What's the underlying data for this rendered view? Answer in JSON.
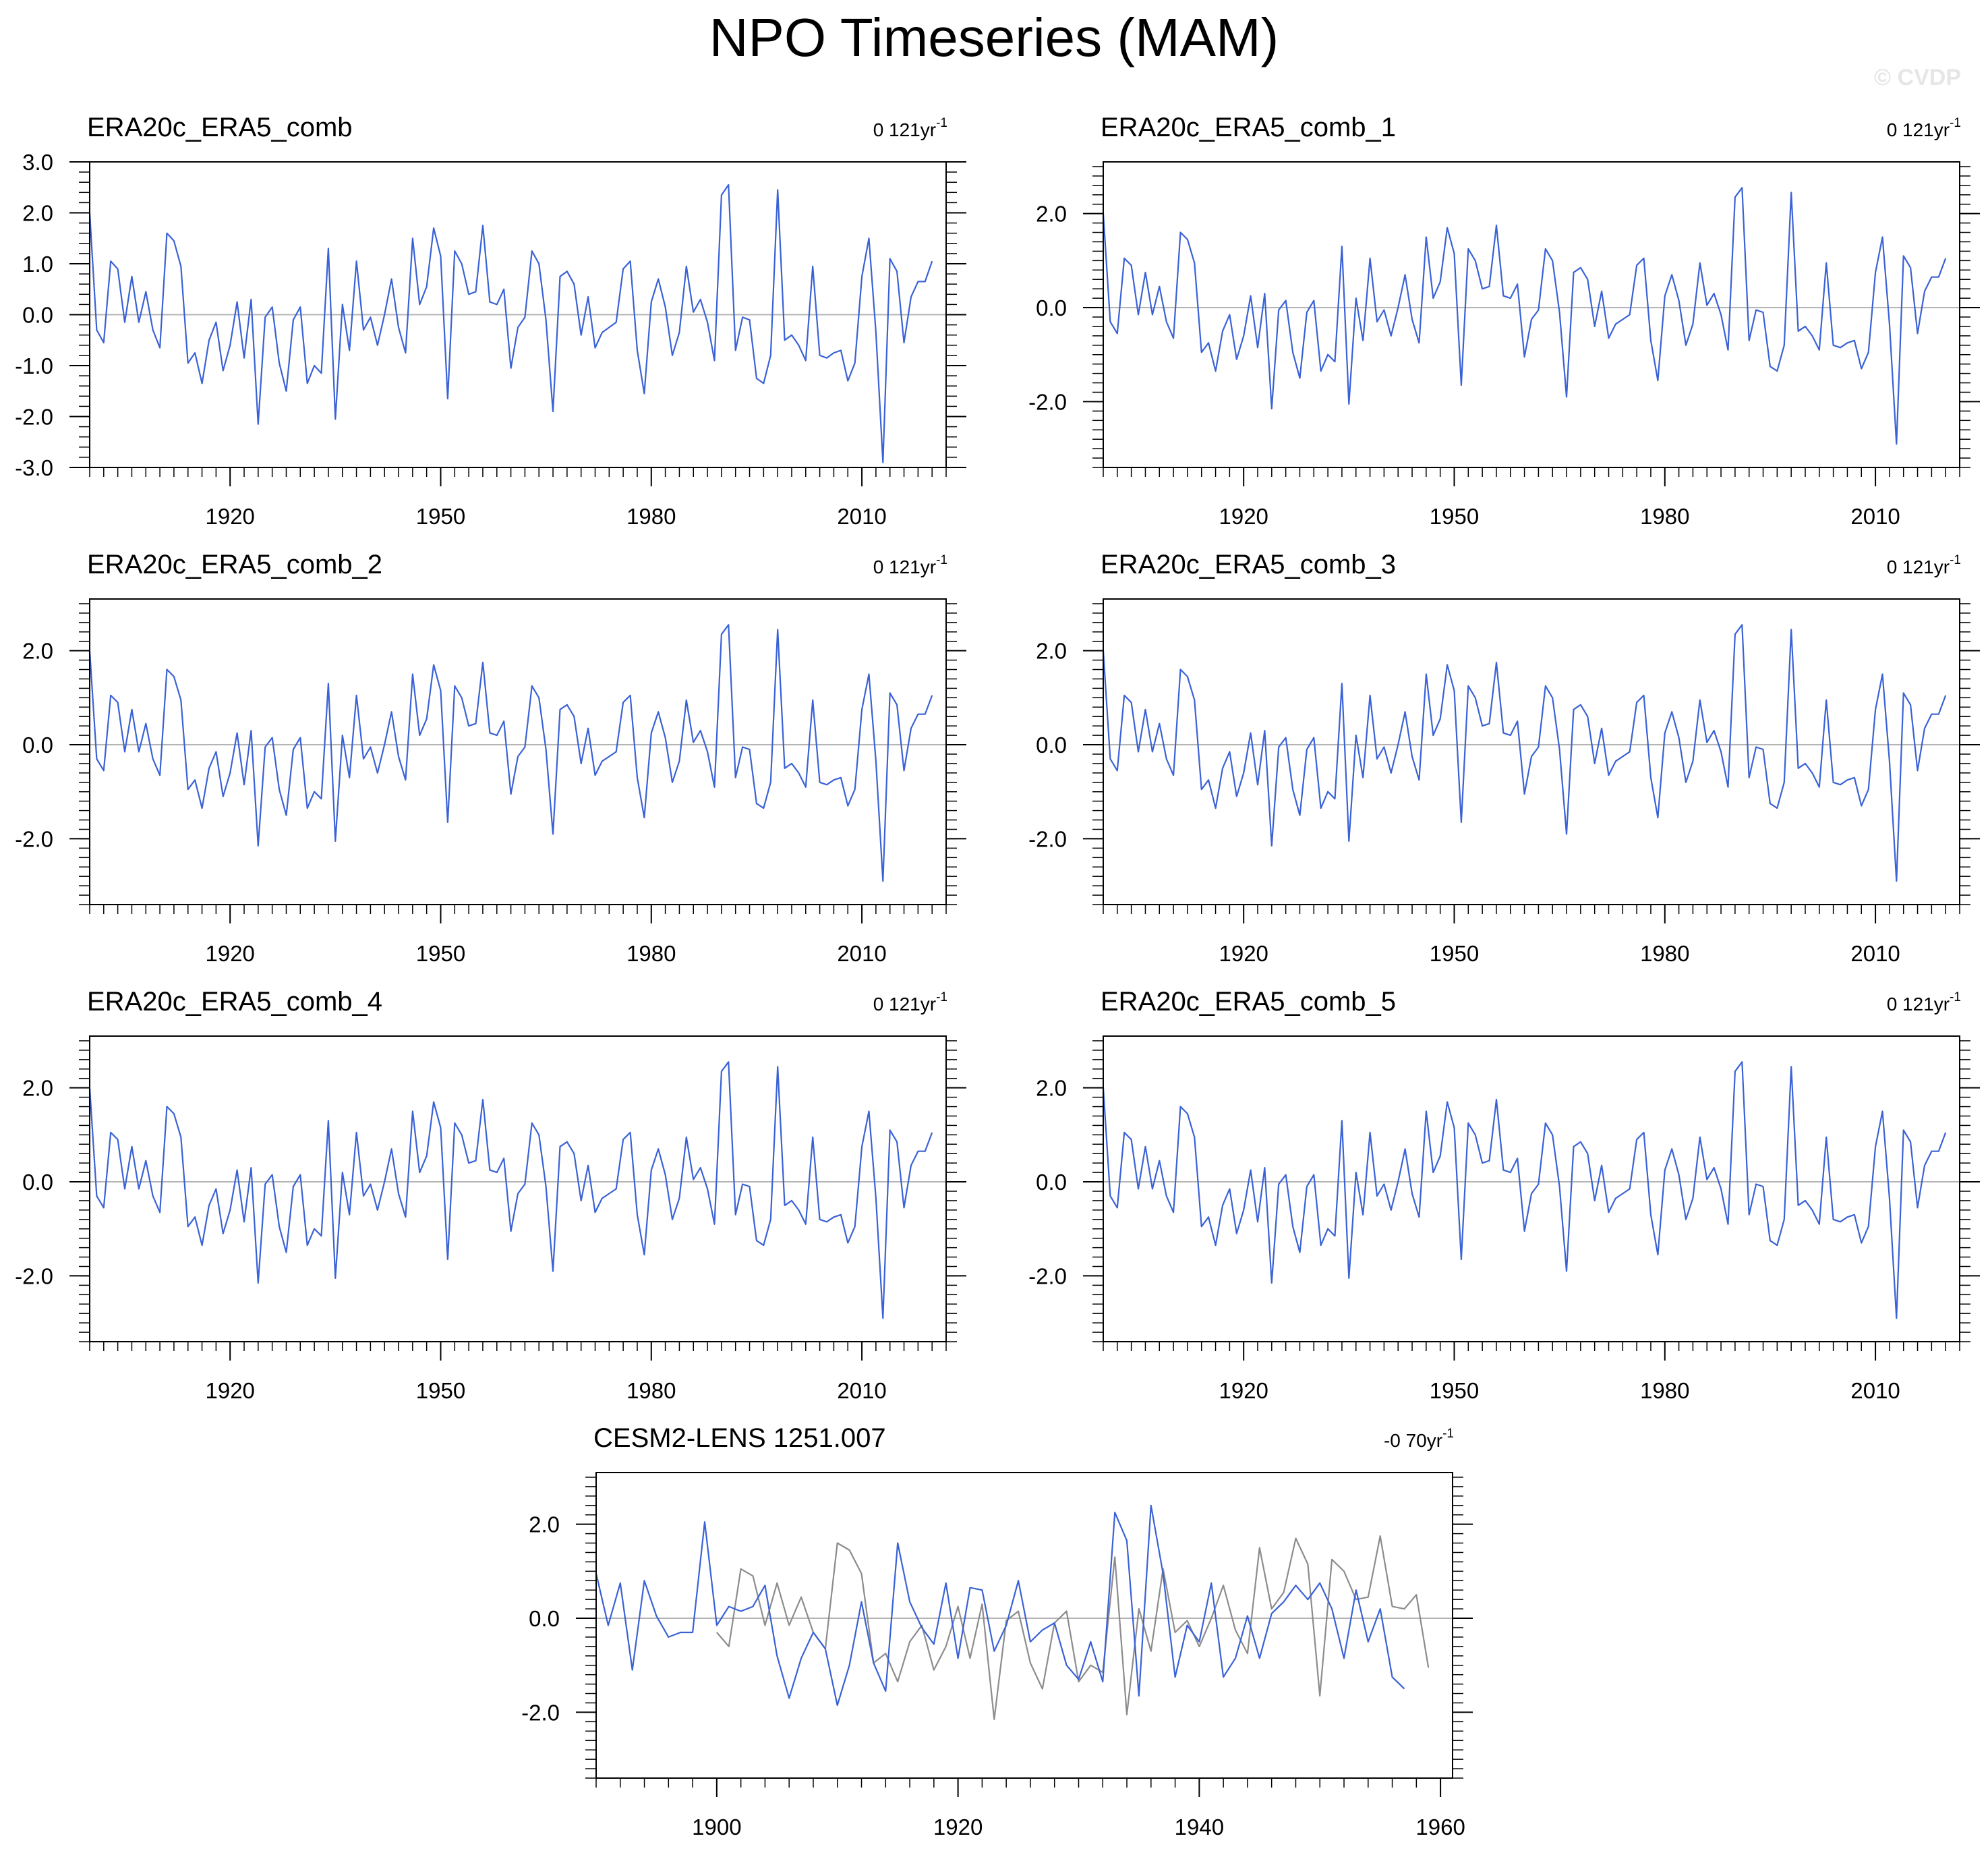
{
  "figure": {
    "title": "NPO Timeseries (MAM)",
    "watermark": "© CVDP",
    "colors": {
      "obs": "#3a62d6",
      "model": "#8c8c8c",
      "zero": "#b4b4b4",
      "axis": "#000000"
    }
  },
  "chart_data": [
    {
      "type": "line",
      "title": "ERA20c_ERA5_comb",
      "trend": "0 121yr",
      "trend_sup": "-1",
      "ylim": [
        -3,
        3
      ],
      "xlim": [
        1900,
        2022
      ],
      "yticks": [
        -3,
        -2,
        -1,
        0,
        1,
        2,
        3
      ],
      "ytick_labels": [
        "-3.0",
        "-2.0",
        "-1.0",
        "0.0",
        "1.0",
        "2.0",
        "3.0"
      ],
      "xticks": [
        1920,
        1950,
        1980,
        2010
      ],
      "grid": false,
      "series": [
        {
          "x_start": 1900,
          "values": [
            2.0,
            -0.3,
            -0.55,
            1.05,
            0.9,
            -0.15,
            0.75,
            -0.15,
            0.45,
            -0.3,
            -0.65,
            1.6,
            1.45,
            0.95,
            -0.95,
            -0.75,
            -1.35,
            -0.5,
            -0.15,
            -1.1,
            -0.6,
            0.25,
            -0.85,
            0.3,
            -2.15,
            -0.05,
            0.15,
            -0.95,
            -1.5,
            -0.1,
            0.15,
            -1.35,
            -1.0,
            -1.15,
            1.3,
            -2.05,
            0.2,
            -0.7,
            1.05,
            -0.3,
            -0.05,
            -0.6,
            0.0,
            0.7,
            -0.25,
            -0.75,
            1.5,
            0.2,
            0.55,
            1.7,
            1.15,
            -1.65,
            1.25,
            1.0,
            0.4,
            0.45,
            1.75,
            0.25,
            0.2,
            0.5,
            -1.05,
            -0.25,
            -0.05,
            1.25,
            1.0,
            -0.1,
            -1.9,
            0.75,
            0.85,
            0.6,
            -0.4,
            0.35,
            -0.65,
            -0.35,
            -0.25,
            -0.15,
            0.9,
            1.05,
            -0.7,
            -1.55,
            0.25,
            0.7,
            0.15,
            -0.8,
            -0.35,
            0.95,
            0.05,
            0.3,
            -0.15,
            -0.9,
            2.35,
            2.55,
            -0.7,
            -0.05,
            -0.1,
            -1.25,
            -1.35,
            -0.8,
            2.45,
            -0.5,
            -0.4,
            -0.6,
            -0.9,
            0.95,
            -0.8,
            -0.85,
            -0.75,
            -0.7,
            -1.3,
            -0.95,
            0.75,
            1.5,
            -0.35,
            -2.9,
            1.1,
            0.85,
            -0.55,
            0.35,
            0.65,
            0.65,
            1.05
          ]
        }
      ]
    },
    {
      "type": "line",
      "title": "ERA20c_ERA5_comb_1",
      "trend": "0 121yr",
      "trend_sup": "-1",
      "ylim": [
        -3.4,
        3.1
      ],
      "xlim": [
        1900,
        2022
      ],
      "yticks": [
        -2,
        0,
        2
      ],
      "ytick_labels": [
        "-2.0",
        "0.0",
        "2.0"
      ],
      "xticks": [
        1920,
        1950,
        1980,
        2010
      ],
      "grid": false,
      "series": [
        {
          "x_start": 1900,
          "values": [
            2.0,
            -0.3,
            -0.55,
            1.05,
            0.9,
            -0.15,
            0.75,
            -0.15,
            0.45,
            -0.3,
            -0.65,
            1.6,
            1.45,
            0.95,
            -0.95,
            -0.75,
            -1.35,
            -0.5,
            -0.15,
            -1.1,
            -0.6,
            0.25,
            -0.85,
            0.3,
            -2.15,
            -0.05,
            0.15,
            -0.95,
            -1.5,
            -0.1,
            0.15,
            -1.35,
            -1.0,
            -1.15,
            1.3,
            -2.05,
            0.2,
            -0.7,
            1.05,
            -0.3,
            -0.05,
            -0.6,
            0.0,
            0.7,
            -0.25,
            -0.75,
            1.5,
            0.2,
            0.55,
            1.7,
            1.15,
            -1.65,
            1.25,
            1.0,
            0.4,
            0.45,
            1.75,
            0.25,
            0.2,
            0.5,
            -1.05,
            -0.25,
            -0.05,
            1.25,
            1.0,
            -0.1,
            -1.9,
            0.75,
            0.85,
            0.6,
            -0.4,
            0.35,
            -0.65,
            -0.35,
            -0.25,
            -0.15,
            0.9,
            1.05,
            -0.7,
            -1.55,
            0.25,
            0.7,
            0.15,
            -0.8,
            -0.35,
            0.95,
            0.05,
            0.3,
            -0.15,
            -0.9,
            2.35,
            2.55,
            -0.7,
            -0.05,
            -0.1,
            -1.25,
            -1.35,
            -0.8,
            2.45,
            -0.5,
            -0.4,
            -0.6,
            -0.9,
            0.95,
            -0.8,
            -0.85,
            -0.75,
            -0.7,
            -1.3,
            -0.95,
            0.75,
            1.5,
            -0.35,
            -2.9,
            1.1,
            0.85,
            -0.55,
            0.35,
            0.65,
            0.65,
            1.05
          ]
        }
      ]
    },
    {
      "type": "line",
      "title": "ERA20c_ERA5_comb_2",
      "trend": "0 121yr",
      "trend_sup": "-1",
      "ylim": [
        -3.4,
        3.1
      ],
      "xlim": [
        1900,
        2022
      ],
      "yticks": [
        -2,
        0,
        2
      ],
      "ytick_labels": [
        "-2.0",
        "0.0",
        "2.0"
      ],
      "xticks": [
        1920,
        1950,
        1980,
        2010
      ],
      "grid": false,
      "series": [
        {
          "x_start": 1900,
          "values": [
            2.0,
            -0.3,
            -0.55,
            1.05,
            0.9,
            -0.15,
            0.75,
            -0.15,
            0.45,
            -0.3,
            -0.65,
            1.6,
            1.45,
            0.95,
            -0.95,
            -0.75,
            -1.35,
            -0.5,
            -0.15,
            -1.1,
            -0.6,
            0.25,
            -0.85,
            0.3,
            -2.15,
            -0.05,
            0.15,
            -0.95,
            -1.5,
            -0.1,
            0.15,
            -1.35,
            -1.0,
            -1.15,
            1.3,
            -2.05,
            0.2,
            -0.7,
            1.05,
            -0.3,
            -0.05,
            -0.6,
            0.0,
            0.7,
            -0.25,
            -0.75,
            1.5,
            0.2,
            0.55,
            1.7,
            1.15,
            -1.65,
            1.25,
            1.0,
            0.4,
            0.45,
            1.75,
            0.25,
            0.2,
            0.5,
            -1.05,
            -0.25,
            -0.05,
            1.25,
            1.0,
            -0.1,
            -1.9,
            0.75,
            0.85,
            0.6,
            -0.4,
            0.35,
            -0.65,
            -0.35,
            -0.25,
            -0.15,
            0.9,
            1.05,
            -0.7,
            -1.55,
            0.25,
            0.7,
            0.15,
            -0.8,
            -0.35,
            0.95,
            0.05,
            0.3,
            -0.15,
            -0.9,
            2.35,
            2.55,
            -0.7,
            -0.05,
            -0.1,
            -1.25,
            -1.35,
            -0.8,
            2.45,
            -0.5,
            -0.4,
            -0.6,
            -0.9,
            0.95,
            -0.8,
            -0.85,
            -0.75,
            -0.7,
            -1.3,
            -0.95,
            0.75,
            1.5,
            -0.35,
            -2.9,
            1.1,
            0.85,
            -0.55,
            0.35,
            0.65,
            0.65,
            1.05
          ]
        }
      ]
    },
    {
      "type": "line",
      "title": "ERA20c_ERA5_comb_3",
      "trend": "0 121yr",
      "trend_sup": "-1",
      "ylim": [
        -3.4,
        3.1
      ],
      "xlim": [
        1900,
        2022
      ],
      "yticks": [
        -2,
        0,
        2
      ],
      "ytick_labels": [
        "-2.0",
        "0.0",
        "2.0"
      ],
      "xticks": [
        1920,
        1950,
        1980,
        2010
      ],
      "grid": false,
      "series": [
        {
          "x_start": 1900,
          "values": [
            2.0,
            -0.3,
            -0.55,
            1.05,
            0.9,
            -0.15,
            0.75,
            -0.15,
            0.45,
            -0.3,
            -0.65,
            1.6,
            1.45,
            0.95,
            -0.95,
            -0.75,
            -1.35,
            -0.5,
            -0.15,
            -1.1,
            -0.6,
            0.25,
            -0.85,
            0.3,
            -2.15,
            -0.05,
            0.15,
            -0.95,
            -1.5,
            -0.1,
            0.15,
            -1.35,
            -1.0,
            -1.15,
            1.3,
            -2.05,
            0.2,
            -0.7,
            1.05,
            -0.3,
            -0.05,
            -0.6,
            0.0,
            0.7,
            -0.25,
            -0.75,
            1.5,
            0.2,
            0.55,
            1.7,
            1.15,
            -1.65,
            1.25,
            1.0,
            0.4,
            0.45,
            1.75,
            0.25,
            0.2,
            0.5,
            -1.05,
            -0.25,
            -0.05,
            1.25,
            1.0,
            -0.1,
            -1.9,
            0.75,
            0.85,
            0.6,
            -0.4,
            0.35,
            -0.65,
            -0.35,
            -0.25,
            -0.15,
            0.9,
            1.05,
            -0.7,
            -1.55,
            0.25,
            0.7,
            0.15,
            -0.8,
            -0.35,
            0.95,
            0.05,
            0.3,
            -0.15,
            -0.9,
            2.35,
            2.55,
            -0.7,
            -0.05,
            -0.1,
            -1.25,
            -1.35,
            -0.8,
            2.45,
            -0.5,
            -0.4,
            -0.6,
            -0.9,
            0.95,
            -0.8,
            -0.85,
            -0.75,
            -0.7,
            -1.3,
            -0.95,
            0.75,
            1.5,
            -0.35,
            -2.9,
            1.1,
            0.85,
            -0.55,
            0.35,
            0.65,
            0.65,
            1.05
          ]
        }
      ]
    },
    {
      "type": "line",
      "title": "ERA20c_ERA5_comb_4",
      "trend": "0 121yr",
      "trend_sup": "-1",
      "ylim": [
        -3.4,
        3.1
      ],
      "xlim": [
        1900,
        2022
      ],
      "yticks": [
        -2,
        0,
        2
      ],
      "ytick_labels": [
        "-2.0",
        "0.0",
        "2.0"
      ],
      "xticks": [
        1920,
        1950,
        1980,
        2010
      ],
      "grid": false,
      "series": [
        {
          "x_start": 1900,
          "values": [
            2.0,
            -0.3,
            -0.55,
            1.05,
            0.9,
            -0.15,
            0.75,
            -0.15,
            0.45,
            -0.3,
            -0.65,
            1.6,
            1.45,
            0.95,
            -0.95,
            -0.75,
            -1.35,
            -0.5,
            -0.15,
            -1.1,
            -0.6,
            0.25,
            -0.85,
            0.3,
            -2.15,
            -0.05,
            0.15,
            -0.95,
            -1.5,
            -0.1,
            0.15,
            -1.35,
            -1.0,
            -1.15,
            1.3,
            -2.05,
            0.2,
            -0.7,
            1.05,
            -0.3,
            -0.05,
            -0.6,
            0.0,
            0.7,
            -0.25,
            -0.75,
            1.5,
            0.2,
            0.55,
            1.7,
            1.15,
            -1.65,
            1.25,
            1.0,
            0.4,
            0.45,
            1.75,
            0.25,
            0.2,
            0.5,
            -1.05,
            -0.25,
            -0.05,
            1.25,
            1.0,
            -0.1,
            -1.9,
            0.75,
            0.85,
            0.6,
            -0.4,
            0.35,
            -0.65,
            -0.35,
            -0.25,
            -0.15,
            0.9,
            1.05,
            -0.7,
            -1.55,
            0.25,
            0.7,
            0.15,
            -0.8,
            -0.35,
            0.95,
            0.05,
            0.3,
            -0.15,
            -0.9,
            2.35,
            2.55,
            -0.7,
            -0.05,
            -0.1,
            -1.25,
            -1.35,
            -0.8,
            2.45,
            -0.5,
            -0.4,
            -0.6,
            -0.9,
            0.95,
            -0.8,
            -0.85,
            -0.75,
            -0.7,
            -1.3,
            -0.95,
            0.75,
            1.5,
            -0.35,
            -2.9,
            1.1,
            0.85,
            -0.55,
            0.35,
            0.65,
            0.65,
            1.05
          ]
        }
      ]
    },
    {
      "type": "line",
      "title": "ERA20c_ERA5_comb_5",
      "trend": "0 121yr",
      "trend_sup": "-1",
      "ylim": [
        -3.4,
        3.1
      ],
      "xlim": [
        1900,
        2022
      ],
      "yticks": [
        -2,
        0,
        2
      ],
      "ytick_labels": [
        "-2.0",
        "0.0",
        "2.0"
      ],
      "xticks": [
        1920,
        1950,
        1980,
        2010
      ],
      "grid": false,
      "series": [
        {
          "x_start": 1900,
          "values": [
            2.0,
            -0.3,
            -0.55,
            1.05,
            0.9,
            -0.15,
            0.75,
            -0.15,
            0.45,
            -0.3,
            -0.65,
            1.6,
            1.45,
            0.95,
            -0.95,
            -0.75,
            -1.35,
            -0.5,
            -0.15,
            -1.1,
            -0.6,
            0.25,
            -0.85,
            0.3,
            -2.15,
            -0.05,
            0.15,
            -0.95,
            -1.5,
            -0.1,
            0.15,
            -1.35,
            -1.0,
            -1.15,
            1.3,
            -2.05,
            0.2,
            -0.7,
            1.05,
            -0.3,
            -0.05,
            -0.6,
            0.0,
            0.7,
            -0.25,
            -0.75,
            1.5,
            0.2,
            0.55,
            1.7,
            1.15,
            -1.65,
            1.25,
            1.0,
            0.4,
            0.45,
            1.75,
            0.25,
            0.2,
            0.5,
            -1.05,
            -0.25,
            -0.05,
            1.25,
            1.0,
            -0.1,
            -1.9,
            0.75,
            0.85,
            0.6,
            -0.4,
            0.35,
            -0.65,
            -0.35,
            -0.25,
            -0.15,
            0.9,
            1.05,
            -0.7,
            -1.55,
            0.25,
            0.7,
            0.15,
            -0.8,
            -0.35,
            0.95,
            0.05,
            0.3,
            -0.15,
            -0.9,
            2.35,
            2.55,
            -0.7,
            -0.05,
            -0.1,
            -1.25,
            -1.35,
            -0.8,
            2.45,
            -0.5,
            -0.4,
            -0.6,
            -0.9,
            0.95,
            -0.8,
            -0.85,
            -0.75,
            -0.7,
            -1.3,
            -0.95,
            0.75,
            1.5,
            -0.35,
            -2.9,
            1.1,
            0.85,
            -0.55,
            0.35,
            0.65,
            0.65,
            1.05
          ]
        }
      ]
    },
    {
      "type": "line",
      "title": "CESM2-LENS 1251.007",
      "trend": "-0 70yr",
      "trend_sup": "-1",
      "ylim": [
        -3.4,
        3.1
      ],
      "xlim": [
        1890,
        1961
      ],
      "yticks": [
        -2,
        0,
        2
      ],
      "ytick_labels": [
        "-2.0",
        "0.0",
        "2.0"
      ],
      "xticks": [
        1900,
        1920,
        1940,
        1960
      ],
      "grid": false,
      "series": [
        {
          "x_start": 1890,
          "values": [
            0.95,
            -0.15,
            0.75,
            -1.1,
            0.8,
            0.05,
            -0.4,
            -0.3,
            -0.3,
            2.05,
            -0.15,
            0.25,
            0.15,
            0.25,
            0.7,
            -0.8,
            -1.7,
            -0.85,
            -0.3,
            -0.65,
            -1.85,
            -1.0,
            0.35,
            -0.95,
            -1.55,
            1.6,
            0.35,
            -0.2,
            -0.55,
            0.75,
            -0.85,
            0.65,
            0.6,
            -0.7,
            -0.15,
            0.8,
            -0.5,
            -0.25,
            -0.1,
            -1.0,
            -1.3,
            -0.5,
            -1.35,
            2.25,
            1.65,
            -1.65,
            2.4,
            0.95,
            -1.25,
            -0.15,
            -0.5,
            0.75,
            -1.25,
            -0.85,
            0.05,
            -0.85,
            0.1,
            0.35,
            0.7,
            0.4,
            0.75,
            0.2,
            -0.85,
            0.6,
            -0.5,
            0.2,
            -1.25,
            -1.5
          ]
        },
        {
          "x_start": 1900,
          "values": [
            -0.3,
            -0.6,
            1.05,
            0.9,
            -0.15,
            0.75,
            -0.15,
            0.45,
            -0.3,
            -0.65,
            1.6,
            1.45,
            0.95,
            -0.95,
            -0.75,
            -1.35,
            -0.5,
            -0.15,
            -1.1,
            -0.6,
            0.25,
            -0.85,
            0.3,
            -2.15,
            -0.05,
            0.15,
            -0.95,
            -1.5,
            -0.1,
            0.15,
            -1.35,
            -1.0,
            -1.15,
            1.3,
            -2.05,
            0.2,
            -0.7,
            1.05,
            -0.3,
            -0.05,
            -0.6,
            0.0,
            0.7,
            -0.25,
            -0.75,
            1.5,
            0.2,
            0.55,
            1.7,
            1.15,
            -1.65,
            1.25,
            1.0,
            0.4,
            0.45,
            1.75,
            0.25,
            0.2,
            0.5,
            -1.05
          ]
        }
      ]
    }
  ]
}
